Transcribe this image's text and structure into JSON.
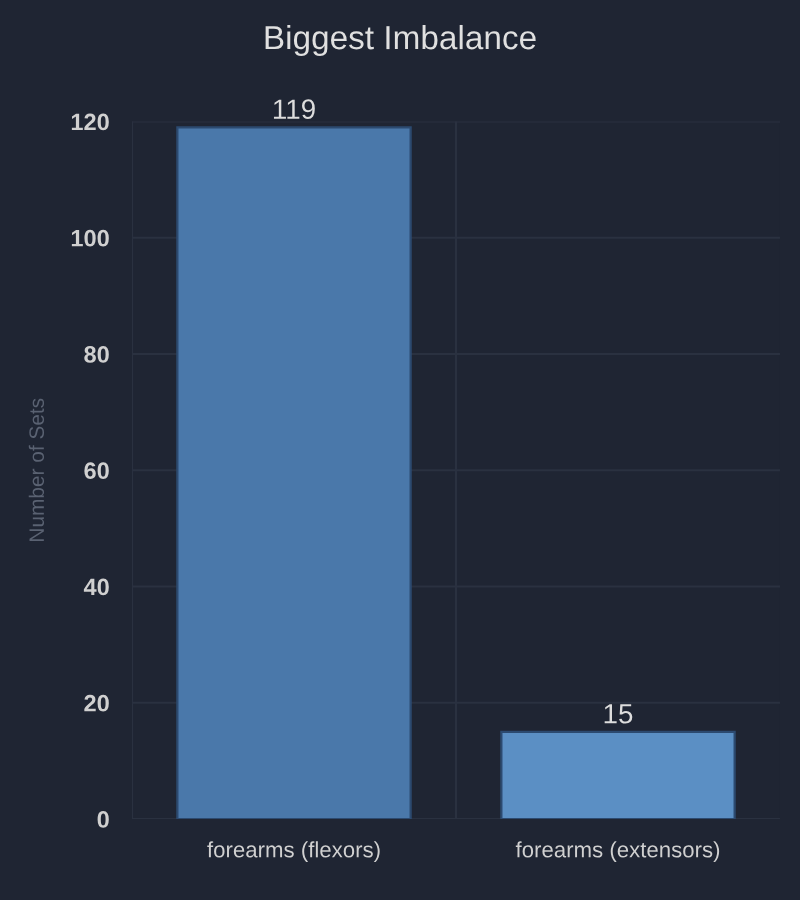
{
  "chart_data": {
    "type": "bar",
    "title": "Biggest Imbalance",
    "ylabel": "Number of Sets",
    "categories": [
      "forearms (flexors)",
      "forearms (extensors)"
    ],
    "values": [
      119,
      15
    ],
    "colors": [
      "#4a78aa",
      "#5b8fc4"
    ],
    "ylim": [
      0,
      120
    ],
    "yticks": [
      0,
      20,
      40,
      60,
      80,
      100,
      120
    ],
    "grid": true,
    "data_labels": true
  }
}
